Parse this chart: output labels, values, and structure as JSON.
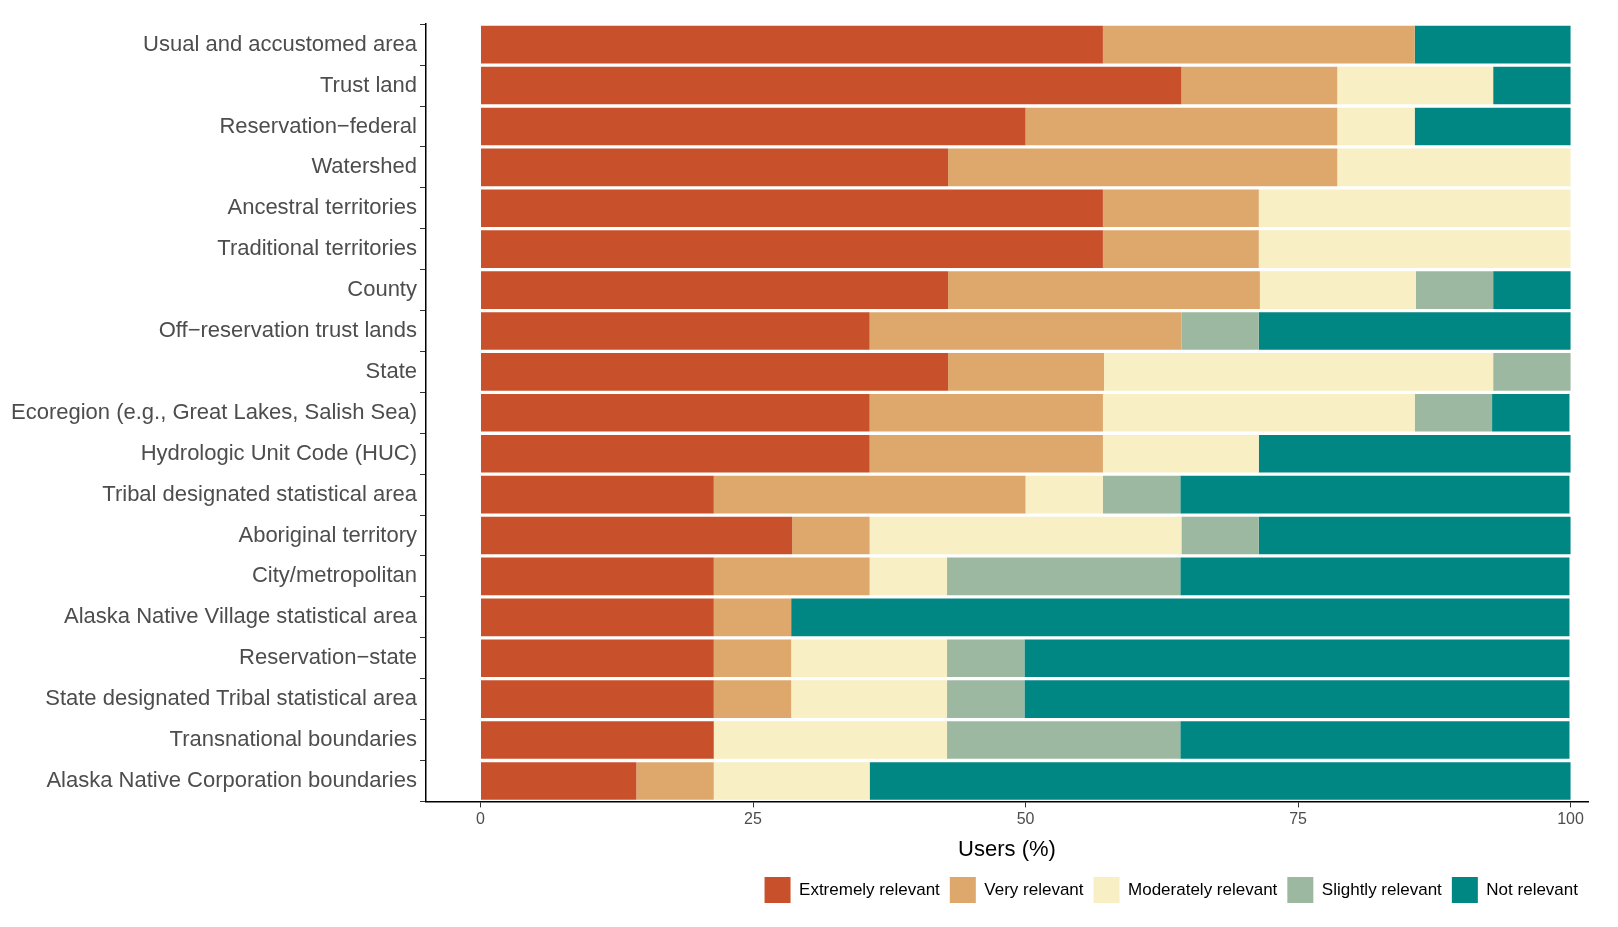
{
  "chart_data": {
    "type": "bar",
    "orientation": "horizontal",
    "stacked": true,
    "xlabel": "Users (%)",
    "categories": [
      "Usual and accustomed area",
      "Trust land",
      "Reservation−federal",
      "Watershed",
      "Ancestral territories",
      "Traditional territories",
      "County",
      "Off−reservation trust lands",
      "State",
      "Ecoregion (e.g., Great Lakes, Salish Sea)",
      "Hydrologic Unit Code (HUC)",
      "Tribal designated statistical area",
      "Aboriginal territory",
      "City/metropolitan",
      "Alaska Native Village statistical area",
      "Reservation−state",
      "State designated Tribal statistical area",
      "Transnational boundaries",
      "Alaska Native Corporation boundaries"
    ],
    "series": [
      {
        "name": "Extremely relevant",
        "color": "#c8512c",
        "values": [
          57.1,
          64.3,
          50,
          42.9,
          57.1,
          57.1,
          42.9,
          35.7,
          42.9,
          35.7,
          35.7,
          21.4,
          28.6,
          21.4,
          21.4,
          21.4,
          21.4,
          21.4,
          14.3
        ]
      },
      {
        "name": "Very relevant",
        "color": "#dea86c",
        "values": [
          28.6,
          14.3,
          28.6,
          35.7,
          14.3,
          14.3,
          28.6,
          28.6,
          14.3,
          21.4,
          21.4,
          28.6,
          7.1,
          14.3,
          7.1,
          7.1,
          7.1,
          0,
          7.1
        ]
      },
      {
        "name": "Moderately relevant",
        "color": "#f8efc4",
        "values": [
          0,
          14.3,
          7.1,
          21.4,
          28.6,
          28.6,
          14.3,
          0,
          35.7,
          28.6,
          14.3,
          7.1,
          28.6,
          7.1,
          0,
          14.3,
          14.3,
          21.4,
          14.3
        ]
      },
      {
        "name": "Slightly relevant",
        "color": "#9cb8a0",
        "values": [
          0,
          0,
          0,
          0,
          0,
          0,
          7.1,
          7.1,
          7.1,
          7.1,
          0,
          7.1,
          7.1,
          21.4,
          0,
          7.1,
          7.1,
          21.4,
          0
        ]
      },
      {
        "name": "Not relevant",
        "color": "#008683",
        "values": [
          14.3,
          7.1,
          14.3,
          0,
          0,
          0,
          7.1,
          28.6,
          0,
          7.1,
          28.6,
          35.7,
          28.6,
          35.7,
          71.4,
          50,
          50,
          35.7,
          64.3
        ]
      }
    ],
    "xlim": [
      -5,
      101.6
    ],
    "xticks": [
      0,
      25,
      50,
      75,
      100
    ],
    "grid": false,
    "legend": "bottom"
  }
}
